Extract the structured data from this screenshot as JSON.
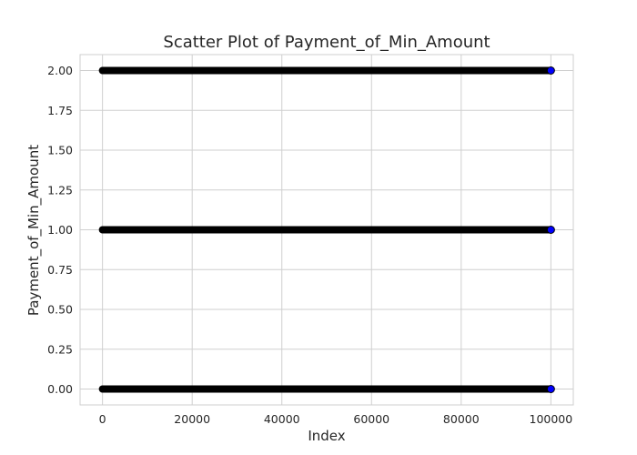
{
  "chart_data": {
    "type": "scatter",
    "title": "Scatter Plot of Payment_of_Min_Amount",
    "xlabel": "Index",
    "ylabel": "Payment_of_Min_Amount",
    "xlim": [
      -5000,
      105000
    ],
    "ylim": [
      -0.1,
      2.1
    ],
    "x_ticks": [
      0,
      20000,
      40000,
      60000,
      80000,
      100000
    ],
    "x_tick_labels": [
      "0",
      "20000",
      "40000",
      "60000",
      "80000",
      "100000"
    ],
    "y_ticks": [
      0,
      0.25,
      0.5,
      0.75,
      1.0,
      1.25,
      1.5,
      1.75,
      2.0
    ],
    "y_tick_labels": [
      "0.00",
      "0.25",
      "0.50",
      "0.75",
      "1.00",
      "1.25",
      "1.50",
      "1.75",
      "2.00"
    ],
    "grid": true,
    "marker_face_color": "#0000ff",
    "marker_edge_color": "#000000",
    "series": [
      {
        "values_y": [
          0,
          1,
          2
        ],
        "x_range": [
          0,
          100000
        ]
      }
    ]
  }
}
